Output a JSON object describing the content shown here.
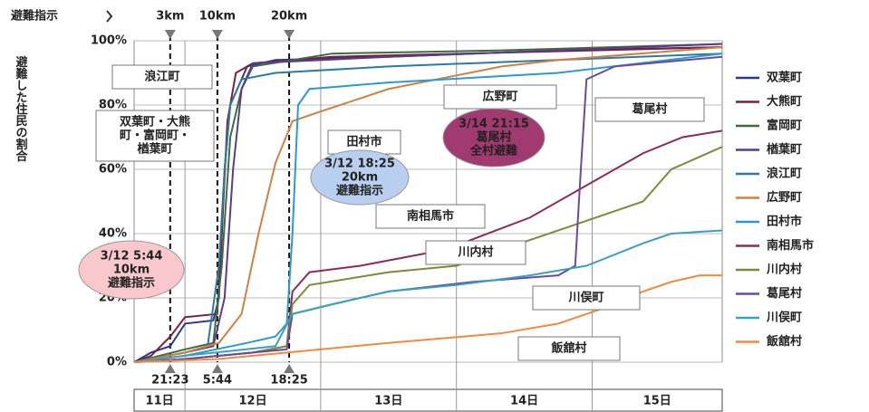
{
  "chart_data": {
    "type": "line",
    "header": "避難指示",
    "y_label": "避難した住民の割合",
    "xlim": [
      15,
      119
    ],
    "ylim": [
      0,
      100
    ],
    "yticks": [
      {
        "value": 0,
        "label": "0%"
      },
      {
        "value": 20,
        "label": "20%"
      },
      {
        "value": 40,
        "label": "40%"
      },
      {
        "value": 60,
        "label": "60%"
      },
      {
        "value": 80,
        "label": "80%"
      },
      {
        "value": 100,
        "label": "100%"
      }
    ],
    "xticks": [
      {
        "value": 21.38,
        "label": "21:23"
      },
      {
        "value": 29.73,
        "label": "5:44"
      },
      {
        "value": 42.42,
        "label": "18:25"
      }
    ],
    "zones": [
      "3km",
      "10km",
      "20km"
    ],
    "day_bounds": [
      24,
      48,
      72,
      96
    ],
    "days": [
      "11日",
      "12日",
      "13日",
      "14日",
      "15日"
    ],
    "grid": true,
    "series": [
      {
        "name": "双葉町",
        "color": "#2b3a8c",
        "x": [
          15,
          18,
          21.4,
          24,
          29,
          30,
          31,
          32,
          35,
          40,
          60,
          90,
          119
        ],
        "values": [
          0,
          3,
          5,
          12,
          13,
          20,
          60,
          80,
          92,
          94,
          95,
          97,
          98
        ]
      },
      {
        "name": "大熊町",
        "color": "#7a1f3d",
        "x": [
          15,
          18,
          21.4,
          24,
          29.7,
          30.5,
          31.5,
          33,
          36,
          50,
          119
        ],
        "values": [
          0,
          2,
          8,
          14,
          15,
          40,
          75,
          90,
          93,
          95,
          98
        ]
      },
      {
        "name": "富岡町",
        "color": "#3c6e3c",
        "x": [
          15,
          24,
          29,
          30.5,
          32,
          34,
          36,
          50,
          80,
          119
        ],
        "values": [
          0,
          4,
          6,
          30,
          70,
          85,
          92,
          96,
          97,
          99
        ]
      },
      {
        "name": "楢葉町",
        "color": "#5a3c8c",
        "x": [
          15,
          24,
          29,
          31,
          32.5,
          34,
          36,
          60,
          119
        ],
        "values": [
          0,
          3,
          5,
          20,
          60,
          85,
          93,
          95,
          99
        ]
      },
      {
        "name": "浪江町",
        "color": "#2d7aa0",
        "x": [
          15,
          24,
          28,
          30,
          31,
          32,
          34,
          40,
          60,
          119
        ],
        "values": [
          0,
          3,
          5,
          30,
          60,
          80,
          88,
          90,
          92,
          96
        ]
      },
      {
        "name": "広野町",
        "color": "#d08040",
        "x": [
          15,
          24,
          30,
          34,
          37,
          40,
          43,
          48,
          60,
          80,
          90,
          119
        ],
        "values": [
          0,
          3,
          6,
          15,
          40,
          62,
          75,
          78,
          85,
          92,
          94,
          98
        ]
      },
      {
        "name": "田村市",
        "color": "#2a9ad0",
        "x": [
          15,
          24,
          35,
          40,
          42,
          43,
          44,
          46,
          60,
          90,
          119
        ],
        "values": [
          0,
          2,
          6,
          8,
          12,
          40,
          80,
          85,
          87,
          90,
          96
        ]
      },
      {
        "name": "南相馬市",
        "color": "#8c2a5a",
        "x": [
          15,
          24,
          36,
          42,
          43,
          46,
          55,
          70,
          85,
          95,
          105,
          112,
          119
        ],
        "values": [
          0,
          1,
          3,
          5,
          22,
          28,
          30,
          35,
          45,
          55,
          65,
          70,
          72
        ]
      },
      {
        "name": "川内村",
        "color": "#7a8c3a",
        "x": [
          15,
          24,
          36,
          42,
          43,
          46,
          60,
          72,
          85,
          95,
          105,
          110,
          119
        ],
        "values": [
          0,
          1,
          3,
          5,
          18,
          24,
          28,
          30,
          38,
          44,
          50,
          60,
          67
        ]
      },
      {
        "name": "葛尾村",
        "color": "#6a4aa0",
        "x": [
          15,
          24,
          42,
          43,
          50,
          60,
          75,
          90,
          93,
          94,
          95,
          100,
          119
        ],
        "values": [
          0,
          1,
          4,
          15,
          18,
          22,
          25,
          27,
          30,
          60,
          88,
          92,
          95
        ]
      },
      {
        "name": "川俣町",
        "color": "#3aa0c0",
        "x": [
          15,
          24,
          40,
          43,
          50,
          60,
          72,
          85,
          95,
          105,
          110,
          119
        ],
        "values": [
          0,
          2,
          5,
          15,
          18,
          22,
          24,
          27,
          30,
          37,
          40,
          41
        ]
      },
      {
        "name": "飯舘村",
        "color": "#f08a40",
        "x": [
          15,
          30,
          42,
          60,
          80,
          90,
          100,
          105,
          110,
          115,
          119
        ],
        "values": [
          0,
          1,
          3,
          6,
          9,
          12,
          18,
          22,
          25,
          27,
          27
        ]
      }
    ],
    "annotations": [
      {
        "lines": [
          "浪江町"
        ]
      },
      {
        "lines": [
          "双葉町・大熊",
          "町・富岡町・",
          "楢葉町"
        ]
      },
      {
        "lines": [
          "田村市"
        ]
      },
      {
        "lines": [
          "広野町"
        ]
      },
      {
        "lines": [
          "葛尾村"
        ]
      },
      {
        "lines": [
          "南相馬市"
        ]
      },
      {
        "lines": [
          "川内村"
        ]
      },
      {
        "lines": [
          "川俣町"
        ]
      },
      {
        "lines": [
          "飯舘村"
        ]
      },
      {
        "lines": [
          "3/12 5:44",
          "10km",
          "避難指示"
        ]
      },
      {
        "lines": [
          "3/12 18:25",
          "20km",
          "避難指示"
        ]
      },
      {
        "lines": [
          "3/14 21:15",
          "葛尾村",
          "全村避難"
        ]
      }
    ]
  }
}
